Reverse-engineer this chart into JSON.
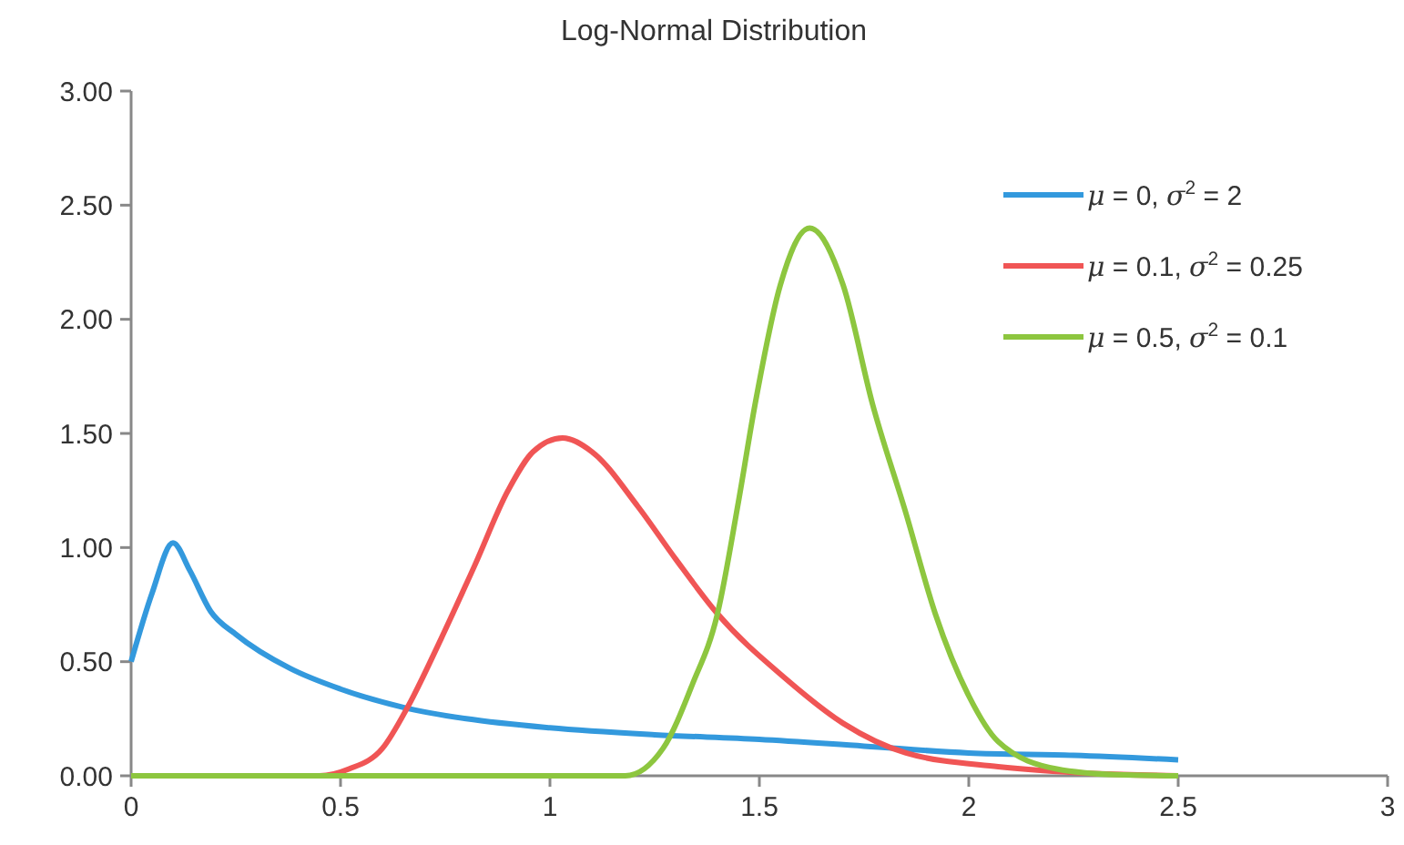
{
  "chart_data": {
    "type": "line",
    "title": "Log-Normal Distribution",
    "xlim": [
      0,
      3
    ],
    "xticks": [
      0,
      0.5,
      1,
      1.5,
      2,
      2.5,
      3
    ],
    "ylim": [
      0,
      3
    ],
    "yticks": [
      {
        "value": 0,
        "label": "0.00"
      },
      {
        "value": 0.5,
        "label": "0.50"
      },
      {
        "value": 1,
        "label": "1.00"
      },
      {
        "value": 1.5,
        "label": "1.50"
      },
      {
        "value": 2,
        "label": "2.00"
      },
      {
        "value": 2.5,
        "label": "2.50"
      },
      {
        "value": 3,
        "label": "3.00"
      }
    ],
    "grid": false,
    "legend": "top right",
    "line_style": "solid",
    "series": [
      {
        "name": "μ = 0, σ$^{2}$ = 2",
        "color": "#3399dd",
        "x": [
          0,
          0.05,
          0.1,
          0.14,
          0.19,
          0.25,
          0.38,
          0.5,
          0.65,
          0.8,
          1.0,
          1.25,
          1.5,
          1.75,
          2.0,
          2.25,
          2.5
        ],
        "values": [
          0.5,
          0.8,
          1.02,
          0.9,
          0.72,
          0.62,
          0.47,
          0.38,
          0.3,
          0.25,
          0.21,
          0.18,
          0.16,
          0.13,
          0.1,
          0.09,
          0.07
        ]
      },
      {
        "name": "μ = 0.1, σ$^{2}$ = 0.25",
        "color": "#f05555",
        "x": [
          0,
          0.3,
          0.45,
          0.52,
          0.6,
          0.66,
          0.74,
          0.82,
          0.9,
          0.96,
          1.03,
          1.1,
          1.21,
          1.3,
          1.4,
          1.56,
          1.7,
          1.85,
          2.07,
          2.3,
          2.5
        ],
        "values": [
          0,
          0,
          0,
          0.03,
          0.12,
          0.3,
          0.6,
          0.92,
          1.25,
          1.42,
          1.48,
          1.42,
          1.18,
          0.95,
          0.71,
          0.43,
          0.23,
          0.1,
          0.04,
          0.01,
          0
        ]
      },
      {
        "name": "μ = 0.5, σ$^{2}$ = 0.1",
        "color": "#8dc63f",
        "x": [
          0,
          0.5,
          1.0,
          1.18,
          1.27,
          1.34,
          1.4,
          1.45,
          1.49,
          1.55,
          1.62,
          1.7,
          1.77,
          1.85,
          1.92,
          2.0,
          2.07,
          2.21,
          2.35,
          2.5
        ],
        "values": [
          0,
          0,
          0,
          0,
          0.12,
          0.4,
          0.71,
          1.2,
          1.63,
          2.15,
          2.4,
          2.15,
          1.63,
          1.15,
          0.71,
          0.35,
          0.15,
          0.03,
          0.005,
          0
        ]
      }
    ]
  }
}
